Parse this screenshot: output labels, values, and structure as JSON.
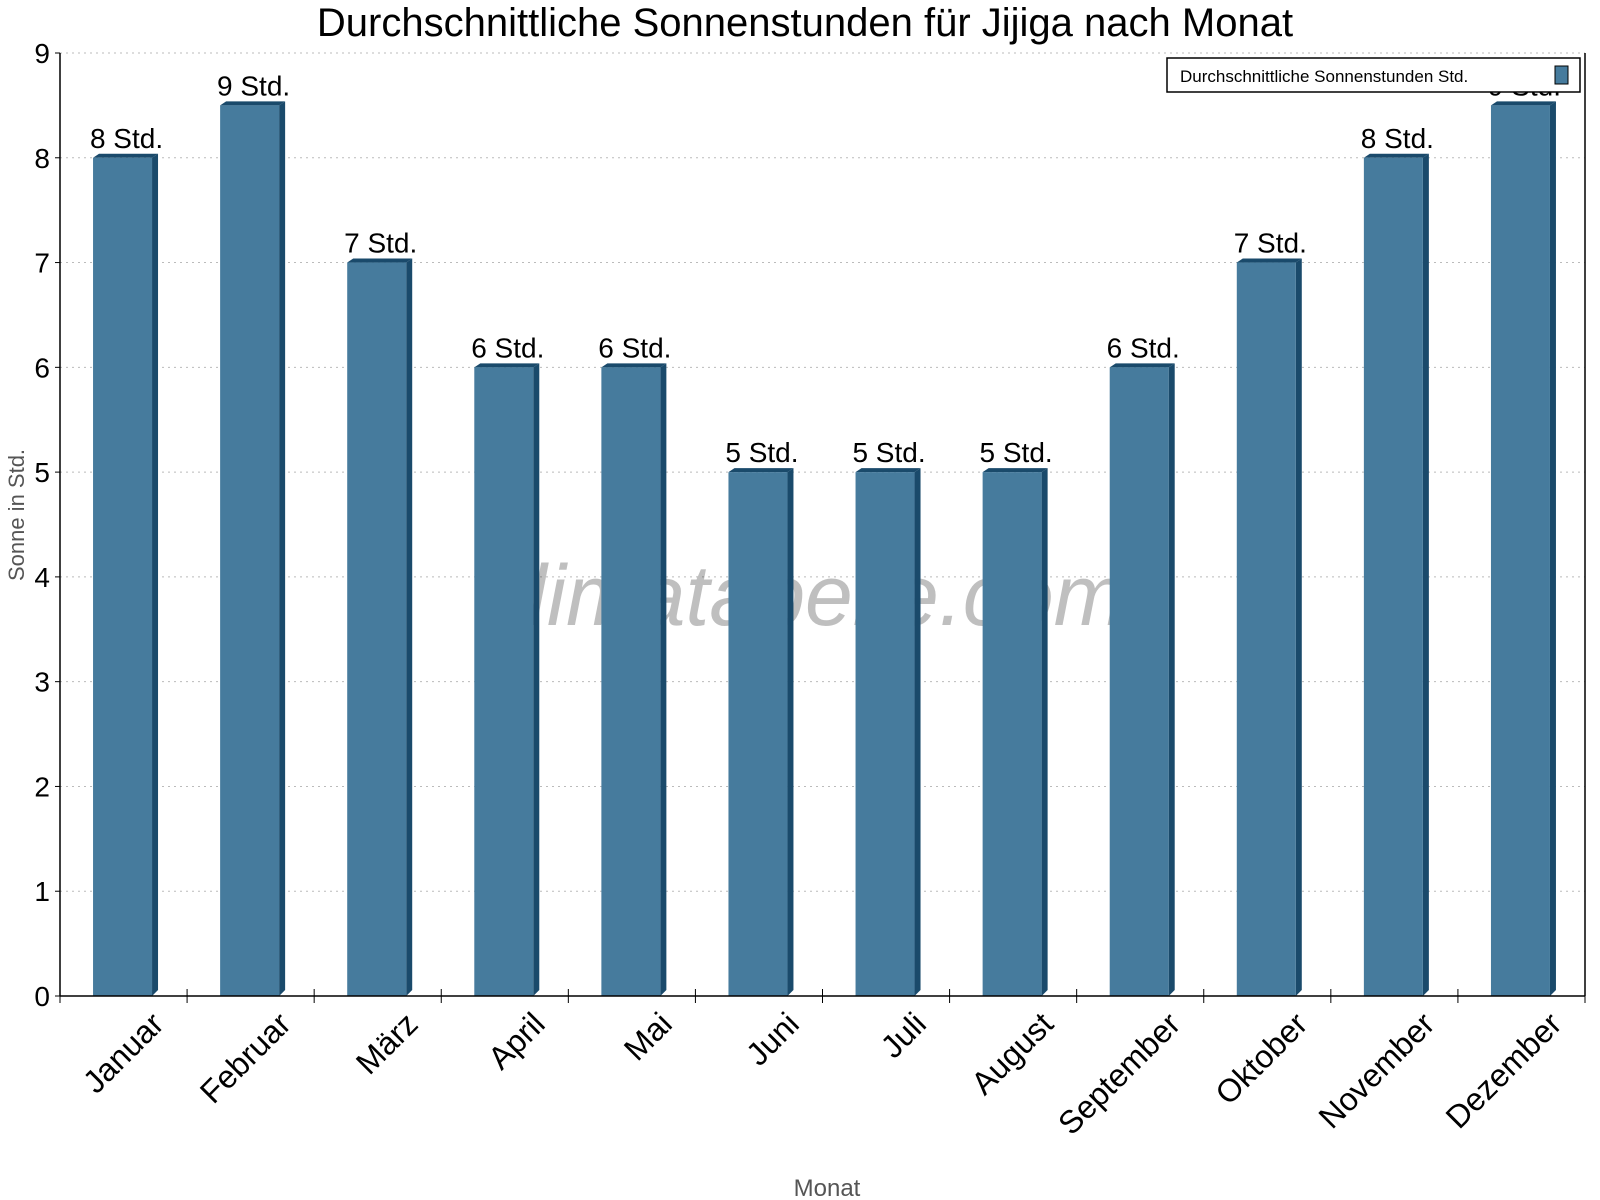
{
  "chart_data": {
    "type": "bar",
    "title": "Durchschnittliche Sonnenstunden für Jijiga nach Monat",
    "xlabel": "Monat",
    "ylabel": "Sonne in Std.",
    "ylim": [
      0,
      9
    ],
    "yticks": [
      0,
      1,
      2,
      3,
      4,
      5,
      6,
      7,
      8,
      9
    ],
    "grid": true,
    "legend_position": "top-right",
    "categories": [
      "Januar",
      "Februar",
      "März",
      "April",
      "Mai",
      "Juni",
      "Juli",
      "August",
      "September",
      "Oktober",
      "November",
      "Dezember"
    ],
    "series": [
      {
        "name": "Durchschnittliche Sonnenstunden Std.",
        "values": [
          8,
          8.5,
          7,
          6,
          6,
          5,
          5,
          5,
          6,
          7,
          8,
          8.5
        ],
        "data_labels": [
          "8 Std.",
          "9 Std.",
          "7 Std.",
          "6 Std.",
          "6 Std.",
          "5 Std.",
          "5 Std.",
          "5 Std.",
          "6 Std.",
          "7 Std.",
          "8 Std.",
          "9 Std."
        ],
        "color": "#467b9d",
        "shade_color": "#1a4a6b"
      }
    ],
    "watermark": "klimatabelle.com"
  }
}
